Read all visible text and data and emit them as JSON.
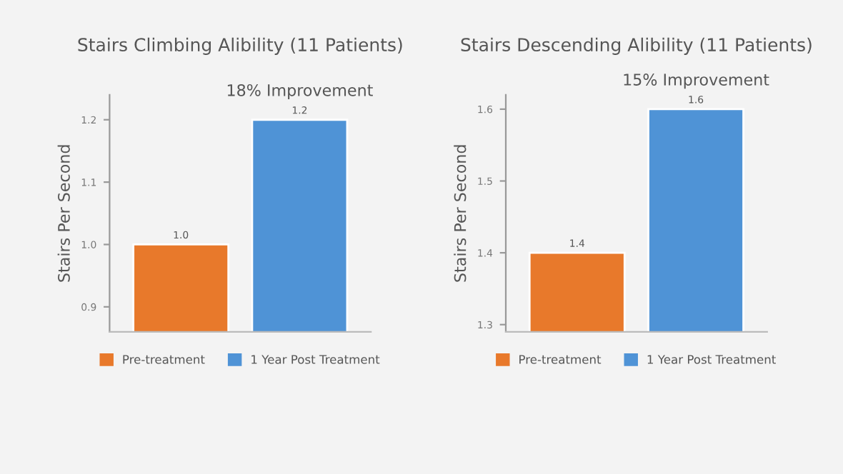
{
  "chart_data": [
    {
      "type": "bar",
      "title": "Stairs Climbing Alibility (11 Patients)",
      "ylabel": "Stairs Per Second",
      "categories": [
        null,
        null
      ],
      "series": [
        {
          "name": "Pre-treatment",
          "color": "#e8792b",
          "values": [
            1.0,
            null
          ],
          "value_labels": [
            "1.0",
            null
          ]
        },
        {
          "name": "1 Year Post Treatment",
          "color": "#4f93d6",
          "values": [
            null,
            1.2
          ],
          "value_labels": [
            null,
            "1.2"
          ]
        }
      ],
      "ylim": [
        0.86,
        1.24
      ],
      "yticks": [
        0.9,
        {
          "value": 1.0,
          "label": "1.0"
        },
        1.1,
        1.2
      ],
      "legend": "bottom",
      "annotations": [
        "18% Improvement"
      ]
    },
    {
      "type": "bar",
      "title": "Stairs Descending Alibility (11 Patients)",
      "ylabel": "Stairs Per Second",
      "categories": [
        null,
        null
      ],
      "series": [
        {
          "name": "Pre-treatment",
          "color": "#e8792b",
          "values": [
            1.4,
            null
          ],
          "value_labels": [
            "1.4",
            null
          ]
        },
        {
          "name": "1 Year Post Treatment",
          "color": "#4f93d6",
          "values": [
            null,
            1.6
          ],
          "value_labels": [
            null,
            "1.6"
          ]
        }
      ],
      "ylim": [
        1.29,
        1.62
      ],
      "yticks": [
        1.3,
        1.4,
        1.5,
        1.6
      ],
      "legend": "bottom",
      "annotations": [
        "15% Improvement"
      ]
    }
  ]
}
